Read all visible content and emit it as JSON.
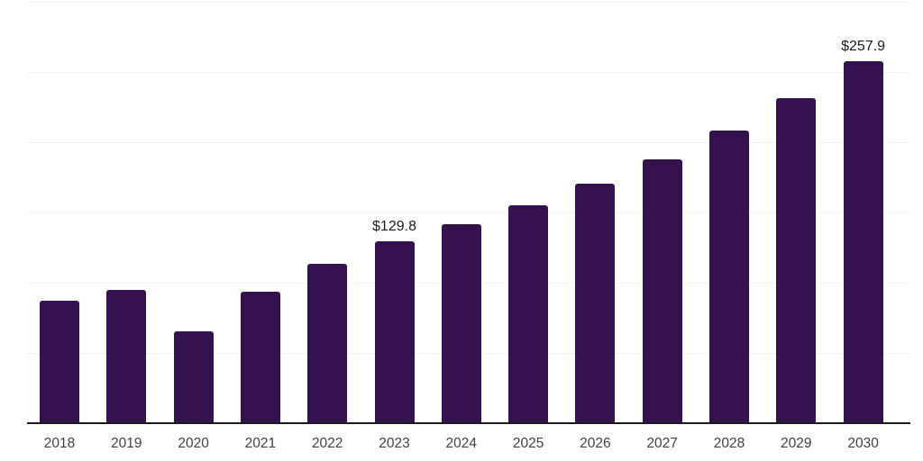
{
  "chart_data": {
    "type": "bar",
    "title": "",
    "xlabel": "",
    "ylabel": "",
    "categories": [
      "2018",
      "2019",
      "2020",
      "2021",
      "2022",
      "2023",
      "2024",
      "2025",
      "2026",
      "2027",
      "2028",
      "2029",
      "2030"
    ],
    "values": [
      87.3,
      94.7,
      65.6,
      93.7,
      113.2,
      129.8,
      141.7,
      155.2,
      170.5,
      187.7,
      208.2,
      231.1,
      257.9
    ],
    "data_labels": [
      "",
      "",
      "",
      "",
      "",
      "$129.8",
      "",
      "",
      "",
      "",
      "",
      "",
      "$257.9"
    ],
    "ylim": [
      0,
      300
    ],
    "grid": true,
    "gridline_values": [
      50,
      100,
      150,
      200,
      250,
      300
    ],
    "legend": false,
    "colors": {
      "bar": "#361150",
      "axis": "#1a1a1a",
      "gridline": "#f2f2f2",
      "tick_label": "#404040",
      "value_label": "#1a1a1a",
      "background": "#ffffff"
    }
  }
}
